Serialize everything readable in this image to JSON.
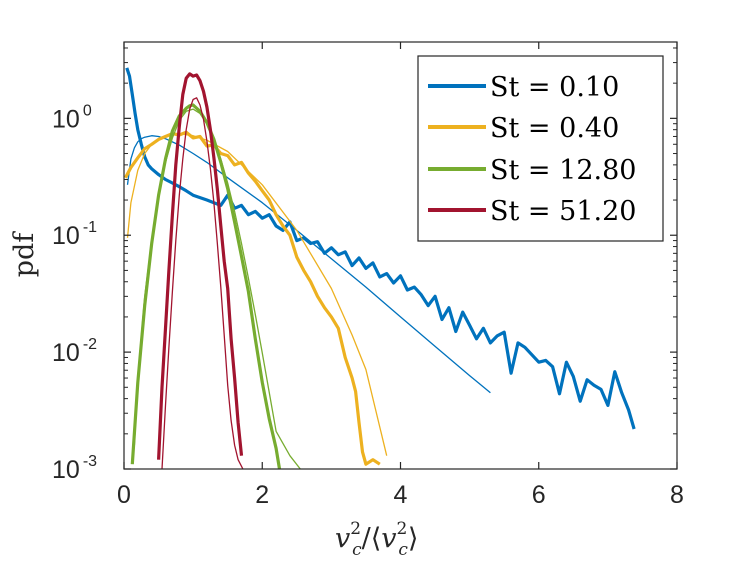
{
  "chart_data": {
    "type": "line",
    "title": "",
    "xlabel": "v_c^2/⟨v_c^2⟩",
    "xlabel_parts": {
      "v": "v",
      "c": "c",
      "two": "2",
      "slash": "/",
      "open": "⟨",
      "close": "⟩"
    },
    "ylabel": "pdf",
    "xlim": [
      0,
      8
    ],
    "ylim": [
      0.001,
      4.5
    ],
    "yscale": "log",
    "xticks": [
      0,
      2,
      4,
      6,
      8
    ],
    "xtick_labels": [
      "0",
      "2",
      "4",
      "6",
      "8"
    ],
    "yticks": [
      0.001,
      0.01,
      0.1,
      1
    ],
    "ytick_bases": [
      "10",
      "10",
      "10",
      "10"
    ],
    "ytick_exponents": [
      "-3",
      "-2",
      "-1",
      "0"
    ],
    "legend_position": "top-right",
    "series": [
      {
        "name": "St = 0.10",
        "color": "#0072BD",
        "kind": "measured",
        "x": [
          0.04,
          0.08,
          0.12,
          0.16,
          0.2,
          0.25,
          0.3,
          0.35,
          0.4,
          0.5,
          0.6,
          0.7,
          0.8,
          0.9,
          1.0,
          1.1,
          1.2,
          1.3,
          1.4,
          1.5,
          1.6,
          1.7,
          1.8,
          1.9,
          2.0,
          2.1,
          2.2,
          2.3,
          2.4,
          2.5,
          2.6,
          2.7,
          2.8,
          2.9,
          3.0,
          3.1,
          3.2,
          3.3,
          3.4,
          3.5,
          3.6,
          3.7,
          3.8,
          3.9,
          4.0,
          4.1,
          4.2,
          4.3,
          4.4,
          4.5,
          4.6,
          4.7,
          4.8,
          4.9,
          5.0,
          5.1,
          5.2,
          5.3,
          5.4,
          5.5,
          5.6,
          5.7,
          5.8,
          5.9,
          6.0,
          6.1,
          6.2,
          6.3,
          6.4,
          6.5,
          6.6,
          6.7,
          6.8,
          6.9,
          7.0,
          7.1,
          7.2,
          7.3,
          7.38
        ],
        "y": [
          2.7,
          2.3,
          1.6,
          1.1,
          0.8,
          0.6,
          0.47,
          0.4,
          0.37,
          0.33,
          0.3,
          0.28,
          0.26,
          0.24,
          0.22,
          0.21,
          0.2,
          0.19,
          0.18,
          0.22,
          0.17,
          0.18,
          0.15,
          0.16,
          0.14,
          0.15,
          0.12,
          0.11,
          0.13,
          0.09,
          0.095,
          0.085,
          0.088,
          0.07,
          0.078,
          0.068,
          0.072,
          0.055,
          0.064,
          0.052,
          0.058,
          0.044,
          0.047,
          0.039,
          0.045,
          0.034,
          0.036,
          0.031,
          0.025,
          0.03,
          0.019,
          0.024,
          0.015,
          0.022,
          0.017,
          0.013,
          0.016,
          0.012,
          0.0138,
          0.0148,
          0.0066,
          0.012,
          0.011,
          0.0095,
          0.0082,
          0.0085,
          0.0075,
          0.0044,
          0.0082,
          0.0062,
          0.0038,
          0.0058,
          0.0052,
          0.0048,
          0.0035,
          0.0068,
          0.0045,
          0.0032,
          0.0022
        ]
      },
      {
        "name": "St = 0.10 fit",
        "color": "#0072BD",
        "kind": "fit",
        "x": [
          0.05,
          0.1,
          0.15,
          0.2,
          0.25,
          0.3,
          0.4,
          0.5,
          0.6,
          0.8,
          1.0,
          1.2,
          1.5,
          2.0,
          2.5,
          3.0,
          3.5,
          4.0,
          4.5,
          5.0,
          5.3
        ],
        "y": [
          0.27,
          0.45,
          0.56,
          0.63,
          0.67,
          0.69,
          0.71,
          0.7,
          0.67,
          0.59,
          0.5,
          0.42,
          0.31,
          0.19,
          0.11,
          0.063,
          0.036,
          0.02,
          0.0112,
          0.0063,
          0.0045
        ]
      },
      {
        "name": "St = 0.40",
        "color": "#EDB120",
        "kind": "measured",
        "x": [
          0.02,
          0.1,
          0.2,
          0.3,
          0.4,
          0.5,
          0.6,
          0.7,
          0.8,
          0.9,
          1.0,
          1.1,
          1.2,
          1.3,
          1.4,
          1.5,
          1.6,
          1.7,
          1.8,
          1.9,
          2.0,
          2.1,
          2.2,
          2.3,
          2.4,
          2.5,
          2.6,
          2.7,
          2.8,
          2.9,
          3.0,
          3.1,
          3.2,
          3.3,
          3.35,
          3.4,
          3.45,
          3.5,
          3.6,
          3.7
        ],
        "y": [
          0.31,
          0.38,
          0.46,
          0.55,
          0.6,
          0.66,
          0.7,
          0.74,
          0.72,
          0.76,
          0.68,
          0.7,
          0.58,
          0.59,
          0.5,
          0.48,
          0.4,
          0.42,
          0.34,
          0.29,
          0.24,
          0.2,
          0.15,
          0.12,
          0.1,
          0.065,
          0.05,
          0.04,
          0.03,
          0.024,
          0.02,
          0.016,
          0.009,
          0.006,
          0.0046,
          0.0025,
          0.0014,
          0.0011,
          0.0012,
          0.0011
        ]
      },
      {
        "name": "St = 0.40 fit",
        "color": "#EDB120",
        "kind": "fit",
        "x": [
          0.05,
          0.1,
          0.2,
          0.3,
          0.4,
          0.6,
          0.8,
          1.0,
          1.2,
          1.5,
          2.0,
          2.5,
          3.0,
          3.3,
          3.5,
          3.8
        ],
        "y": [
          0.095,
          0.19,
          0.36,
          0.5,
          0.6,
          0.71,
          0.74,
          0.71,
          0.65,
          0.52,
          0.27,
          0.11,
          0.035,
          0.014,
          0.0071,
          0.0013
        ]
      },
      {
        "name": "St = 12.80",
        "color": "#77AC30",
        "kind": "measured",
        "x": [
          0.12,
          0.2,
          0.3,
          0.4,
          0.5,
          0.6,
          0.7,
          0.8,
          0.9,
          0.95,
          1.0,
          1.1,
          1.2,
          1.3,
          1.4,
          1.5,
          1.6,
          1.7,
          1.8,
          1.9,
          2.0,
          2.1,
          2.2,
          2.25
        ],
        "y": [
          0.0011,
          0.0055,
          0.025,
          0.085,
          0.22,
          0.45,
          0.78,
          1.05,
          1.22,
          1.28,
          1.3,
          1.15,
          0.92,
          0.66,
          0.42,
          0.25,
          0.13,
          0.066,
          0.033,
          0.013,
          0.0055,
          0.0027,
          0.0015,
          0.001
        ]
      },
      {
        "name": "St = 12.80 fit",
        "color": "#77AC30",
        "kind": "fit",
        "x": [
          0.15,
          0.2,
          0.3,
          0.4,
          0.5,
          0.6,
          0.7,
          0.8,
          0.9,
          1.0,
          1.1,
          1.2,
          1.3,
          1.4,
          1.5,
          1.6,
          1.7,
          1.8,
          1.9,
          2.0,
          2.2,
          2.4,
          2.55
        ],
        "y": [
          0.0016,
          0.006,
          0.03,
          0.09,
          0.22,
          0.42,
          0.68,
          0.96,
          1.15,
          1.2,
          1.1,
          0.9,
          0.67,
          0.45,
          0.28,
          0.16,
          0.085,
          0.043,
          0.021,
          0.0098,
          0.0021,
          0.0013,
          0.001
        ]
      },
      {
        "name": "St = 51.20",
        "color": "#A2142F",
        "kind": "measured",
        "x": [
          0.5,
          0.55,
          0.6,
          0.65,
          0.7,
          0.75,
          0.8,
          0.85,
          0.9,
          0.95,
          1.0,
          1.05,
          1.1,
          1.15,
          1.2,
          1.25,
          1.3,
          1.35,
          1.4,
          1.45,
          1.5,
          1.55,
          1.6,
          1.65,
          1.7
        ],
        "y": [
          0.0012,
          0.005,
          0.016,
          0.05,
          0.15,
          0.4,
          0.85,
          1.6,
          2.2,
          2.4,
          2.3,
          2.35,
          2.1,
          1.7,
          1.25,
          0.8,
          0.46,
          0.25,
          0.12,
          0.06,
          0.035,
          0.013,
          0.006,
          0.0025,
          0.0013
        ]
      },
      {
        "name": "St = 51.20 fit",
        "color": "#A2142F",
        "kind": "fit",
        "x": [
          0.55,
          0.6,
          0.65,
          0.7,
          0.75,
          0.8,
          0.85,
          0.9,
          0.95,
          1.0,
          1.05,
          1.1,
          1.15,
          1.2,
          1.25,
          1.3,
          1.35,
          1.4,
          1.45,
          1.5,
          1.55,
          1.6,
          1.65,
          1.72
        ],
        "y": [
          0.001,
          0.0035,
          0.011,
          0.033,
          0.09,
          0.22,
          0.45,
          0.8,
          1.2,
          1.45,
          1.5,
          1.3,
          0.98,
          0.64,
          0.37,
          0.19,
          0.086,
          0.036,
          0.014,
          0.0052,
          0.0026,
          0.0016,
          0.0012,
          0.001
        ]
      }
    ],
    "legend": [
      {
        "label": "St = 0.10",
        "color": "#0072BD"
      },
      {
        "label": "St = 0.40",
        "color": "#EDB120"
      },
      {
        "label": "St = 12.80",
        "color": "#77AC30"
      },
      {
        "label": "St = 51.20",
        "color": "#A2142F"
      }
    ]
  }
}
